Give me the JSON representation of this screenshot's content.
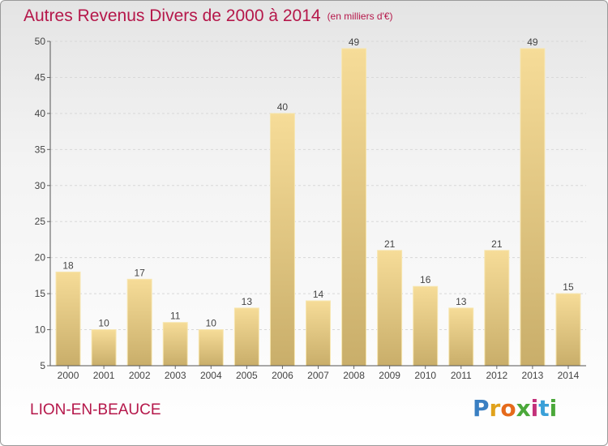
{
  "title": "Autres Revenus Divers de 2000 à 2014",
  "unit": "(en milliers d'€)",
  "place": "LION-EN-BEAUCE",
  "logo": {
    "text": "Proxiti",
    "letters": [
      "P",
      "r",
      "o",
      "x",
      "i",
      "t",
      "i"
    ],
    "colors": [
      "#3a7fc2",
      "#e0a21c",
      "#e56a1b",
      "#4ba83a",
      "#c3317a",
      "#3aa0d8",
      "#4ba83a"
    ]
  },
  "chart_data": {
    "type": "bar",
    "title": "Autres Revenus Divers de 2000 à 2014",
    "subtitle": "(en milliers d'€)",
    "xlabel": "",
    "ylabel": "",
    "categories": [
      "2000",
      "2001",
      "2002",
      "2003",
      "2004",
      "2005",
      "2006",
      "2007",
      "2008",
      "2009",
      "2010",
      "2011",
      "2012",
      "2013",
      "2014"
    ],
    "values": [
      18,
      10,
      17,
      11,
      10,
      13,
      40,
      14,
      49,
      21,
      16,
      13,
      21,
      49,
      15
    ],
    "ylim": [
      5,
      50
    ],
    "yticks": [
      5,
      10,
      15,
      20,
      25,
      30,
      35,
      40,
      45,
      50
    ],
    "grid": true,
    "bar_color": "#e8cc82",
    "grid_color": "#d8d8d8",
    "data_labels": true
  }
}
